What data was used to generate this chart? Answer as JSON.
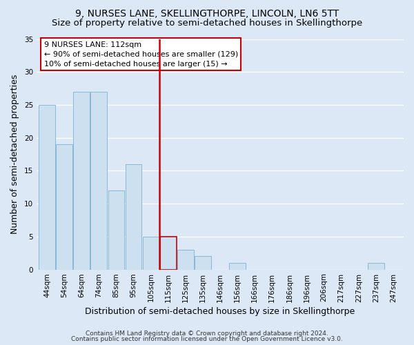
{
  "title1": "9, NURSES LANE, SKELLINGTHORPE, LINCOLN, LN6 5TT",
  "title2": "Size of property relative to semi-detached houses in Skellingthorpe",
  "xlabel": "Distribution of semi-detached houses by size in Skellingthorpe",
  "ylabel": "Number of semi-detached properties",
  "footer1": "Contains HM Land Registry data © Crown copyright and database right 2024.",
  "footer2": "Contains public sector information licensed under the Open Government Licence v3.0.",
  "bar_labels": [
    "44sqm",
    "54sqm",
    "64sqm",
    "74sqm",
    "85sqm",
    "95sqm",
    "105sqm",
    "115sqm",
    "125sqm",
    "135sqm",
    "146sqm",
    "156sqm",
    "166sqm",
    "176sqm",
    "186sqm",
    "196sqm",
    "206sqm",
    "217sqm",
    "227sqm",
    "237sqm",
    "247sqm"
  ],
  "bar_values": [
    25,
    19,
    27,
    27,
    12,
    16,
    5,
    5,
    3,
    2,
    0,
    1,
    0,
    0,
    0,
    0,
    0,
    0,
    0,
    1,
    0
  ],
  "bar_color": "#cce0f0",
  "bar_edge_color": "#88b8d8",
  "highlight_bar_index": 7,
  "vline_color": "#cc0000",
  "ylim": [
    0,
    35
  ],
  "yticks": [
    0,
    5,
    10,
    15,
    20,
    25,
    30,
    35
  ],
  "annotation_title": "9 NURSES LANE: 112sqm",
  "annotation_line1": "← 90% of semi-detached houses are smaller (129)",
  "annotation_line2": "10% of semi-detached houses are larger (15) →",
  "annotation_box_facecolor": "#ffffff",
  "annotation_box_edgecolor": "#cc0000",
  "background_color": "#dce8f5",
  "plot_bg_color": "#dce8f5",
  "grid_color": "#ffffff",
  "title_fontsize": 10,
  "subtitle_fontsize": 9.5,
  "axis_label_fontsize": 9,
  "tick_fontsize": 7.5,
  "footer_fontsize": 6.5,
  "annotation_fontsize": 8
}
